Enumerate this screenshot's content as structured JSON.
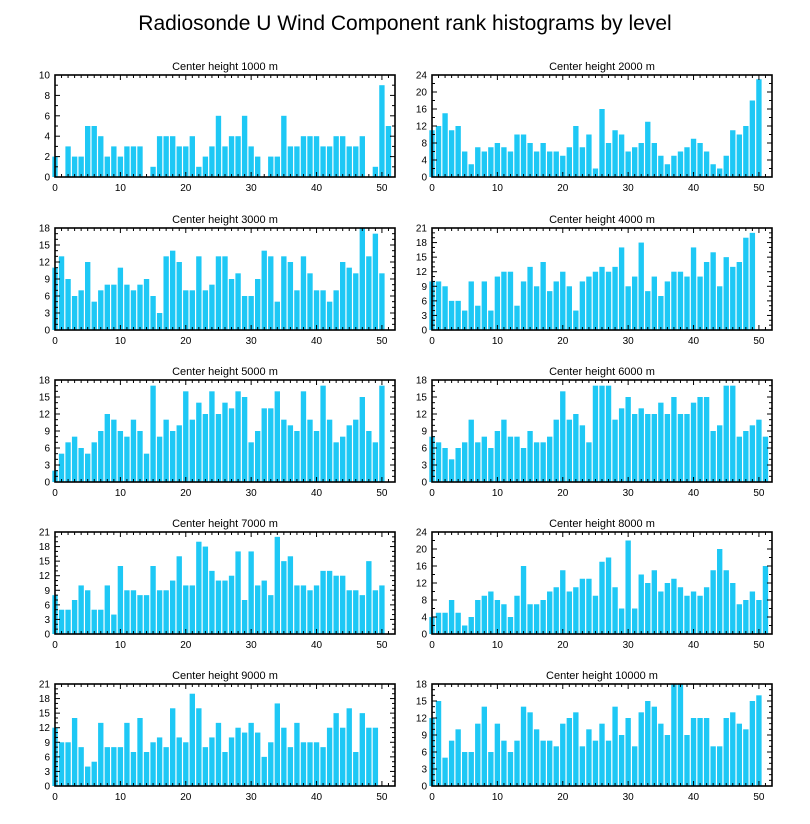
{
  "figure": {
    "title": "Radiosonde U Wind Component rank histograms by level",
    "bar_color": "#1EC8F5",
    "axis_color": "#000000"
  },
  "chart_data": [
    {
      "type": "bar",
      "title": "Center height 1000 m",
      "xlabel": "",
      "ylabel": "",
      "xlim": [
        0,
        52
      ],
      "xticks": [
        0,
        10,
        20,
        30,
        40,
        50
      ],
      "ylim": [
        0,
        10
      ],
      "yticks": [
        0,
        2,
        4,
        6,
        8,
        10
      ],
      "values": [
        2,
        0,
        3,
        2,
        2,
        5,
        5,
        4,
        2,
        3,
        2,
        3,
        3,
        3,
        0,
        1,
        4,
        4,
        4,
        3,
        3,
        4,
        1,
        2,
        3,
        6,
        3,
        4,
        4,
        6,
        3,
        2,
        0,
        2,
        2,
        6,
        3,
        3,
        4,
        4,
        4,
        3,
        3,
        4,
        4,
        3,
        3,
        4,
        0,
        1,
        9,
        5
      ]
    },
    {
      "type": "bar",
      "title": "Center height 2000 m",
      "xlabel": "",
      "ylabel": "",
      "xlim": [
        0,
        52
      ],
      "xticks": [
        0,
        10,
        20,
        30,
        40,
        50
      ],
      "ylim": [
        0,
        24
      ],
      "yticks": [
        0,
        4,
        8,
        12,
        16,
        20,
        24
      ],
      "values": [
        11,
        12,
        15,
        11,
        12,
        6,
        3,
        7,
        6,
        7,
        8,
        7,
        6,
        10,
        10,
        8,
        6,
        8,
        6,
        6,
        5,
        7,
        12,
        7,
        10,
        2,
        16,
        8,
        11,
        10,
        6,
        7,
        8,
        13,
        8,
        5,
        3,
        5,
        6,
        7,
        9,
        8,
        6,
        3,
        2,
        5,
        11,
        10,
        12,
        18,
        23,
        0
      ]
    },
    {
      "type": "bar",
      "title": "Center height 3000 m",
      "xlabel": "",
      "ylabel": "",
      "xlim": [
        0,
        52
      ],
      "xticks": [
        0,
        10,
        20,
        30,
        40,
        50
      ],
      "ylim": [
        0,
        18
      ],
      "yticks": [
        0,
        3,
        6,
        9,
        12,
        15,
        18
      ],
      "values": [
        11,
        13,
        9,
        6,
        7,
        12,
        5,
        7,
        8,
        8,
        11,
        8,
        7,
        8,
        9,
        6,
        3,
        13,
        14,
        12,
        7,
        7,
        13,
        7,
        8,
        13,
        13,
        9,
        10,
        6,
        6,
        9,
        14,
        13,
        5,
        13,
        12,
        7,
        13,
        10,
        7,
        7,
        5,
        7,
        12,
        11,
        10,
        18,
        13,
        17,
        10,
        0
      ]
    },
    {
      "type": "bar",
      "title": "Center height 4000 m",
      "xlabel": "",
      "ylabel": "",
      "xlim": [
        0,
        52
      ],
      "xticks": [
        0,
        10,
        20,
        30,
        40,
        50
      ],
      "ylim": [
        0,
        21
      ],
      "yticks": [
        0,
        3,
        6,
        9,
        12,
        15,
        18,
        21
      ],
      "values": [
        10,
        10,
        9,
        6,
        6,
        4,
        10,
        5,
        10,
        4,
        11,
        12,
        12,
        5,
        10,
        13,
        9,
        14,
        8,
        10,
        12,
        9,
        4,
        10,
        11,
        12,
        13,
        12,
        13,
        17,
        9,
        11,
        18,
        8,
        11,
        7,
        10,
        12,
        12,
        11,
        17,
        11,
        14,
        16,
        9,
        15,
        13,
        14,
        19,
        20,
        0,
        0
      ]
    },
    {
      "type": "bar",
      "title": "Center height 5000 m",
      "xlabel": "",
      "ylabel": "",
      "xlim": [
        0,
        52
      ],
      "xticks": [
        0,
        10,
        20,
        30,
        40,
        50
      ],
      "ylim": [
        0,
        18
      ],
      "yticks": [
        0,
        3,
        6,
        9,
        12,
        15,
        18
      ],
      "values": [
        2,
        5,
        7,
        8,
        6,
        5,
        7,
        9,
        12,
        11,
        9,
        8,
        11,
        9,
        5,
        17,
        8,
        11,
        9,
        10,
        16,
        11,
        14,
        12,
        16,
        12,
        14,
        13,
        16,
        15,
        7,
        9,
        13,
        13,
        16,
        11,
        10,
        9,
        16,
        11,
        9,
        17,
        11,
        7,
        8,
        10,
        11,
        15,
        9,
        7,
        17,
        0
      ]
    },
    {
      "type": "bar",
      "title": "Center height 6000 m",
      "xlabel": "",
      "ylabel": "",
      "xlim": [
        0,
        52
      ],
      "xticks": [
        0,
        10,
        20,
        30,
        40,
        50
      ],
      "ylim": [
        0,
        18
      ],
      "yticks": [
        0,
        3,
        6,
        9,
        12,
        15,
        18
      ],
      "values": [
        8,
        7,
        6,
        4,
        6,
        7,
        11,
        7,
        8,
        6,
        9,
        11,
        8,
        8,
        6,
        9,
        7,
        7,
        8,
        11,
        16,
        11,
        12,
        10,
        7,
        17,
        17,
        17,
        11,
        13,
        15,
        12,
        13,
        12,
        12,
        14,
        12,
        15,
        12,
        12,
        14,
        15,
        15,
        9,
        10,
        17,
        17,
        8,
        9,
        10,
        11,
        8
      ]
    },
    {
      "type": "bar",
      "title": "Center height 7000 m",
      "xlabel": "",
      "ylabel": "",
      "xlim": [
        0,
        52
      ],
      "xticks": [
        0,
        10,
        20,
        30,
        40,
        50
      ],
      "ylim": [
        0,
        21
      ],
      "yticks": [
        0,
        3,
        6,
        9,
        12,
        15,
        18,
        21
      ],
      "values": [
        8,
        5,
        5,
        7,
        10,
        9,
        5,
        5,
        10,
        4,
        14,
        9,
        9,
        8,
        8,
        14,
        9,
        9,
        11,
        16,
        10,
        10,
        19,
        18,
        13,
        11,
        11,
        12,
        17,
        7,
        17,
        10,
        11,
        8,
        20,
        15,
        16,
        10,
        10,
        9,
        10,
        13,
        13,
        12,
        12,
        9,
        9,
        8,
        15,
        9,
        10,
        0
      ]
    },
    {
      "type": "bar",
      "title": "Center height 8000 m",
      "xlabel": "",
      "ylabel": "",
      "xlim": [
        0,
        52
      ],
      "xticks": [
        0,
        10,
        20,
        30,
        40,
        50
      ],
      "ylim": [
        0,
        24
      ],
      "yticks": [
        0,
        4,
        8,
        12,
        16,
        20,
        24
      ],
      "values": [
        4,
        5,
        5,
        8,
        5,
        2,
        4,
        8,
        9,
        10,
        8,
        7,
        4,
        9,
        16,
        7,
        7,
        8,
        10,
        11,
        15,
        10,
        11,
        13,
        13,
        9,
        17,
        18,
        11,
        6,
        22,
        6,
        14,
        12,
        15,
        10,
        12,
        13,
        11,
        9,
        10,
        9,
        11,
        15,
        20,
        15,
        12,
        7,
        8,
        10,
        8,
        16
      ]
    },
    {
      "type": "bar",
      "title": "Center height 9000 m",
      "xlabel": "",
      "ylabel": "",
      "xlim": [
        0,
        52
      ],
      "xticks": [
        0,
        10,
        20,
        30,
        40,
        50
      ],
      "ylim": [
        0,
        21
      ],
      "yticks": [
        0,
        3,
        6,
        9,
        12,
        15,
        18,
        21
      ],
      "values": [
        12,
        9,
        9,
        14,
        8,
        4,
        5,
        13,
        8,
        8,
        8,
        13,
        7,
        14,
        7,
        9,
        10,
        8,
        16,
        10,
        9,
        19,
        16,
        8,
        10,
        13,
        7,
        10,
        12,
        11,
        13,
        11,
        6,
        9,
        17,
        12,
        8,
        13,
        9,
        9,
        9,
        8,
        12,
        15,
        12,
        16,
        7,
        15,
        12,
        12,
        0,
        0
      ]
    },
    {
      "type": "bar",
      "title": "Center height 10000 m",
      "xlabel": "",
      "ylabel": "",
      "xlim": [
        0,
        52
      ],
      "xticks": [
        0,
        10,
        20,
        30,
        40,
        50
      ],
      "ylim": [
        0,
        18
      ],
      "yticks": [
        0,
        3,
        6,
        9,
        12,
        15,
        18
      ],
      "values": [
        12,
        15,
        5,
        8,
        10,
        6,
        6,
        11,
        14,
        6,
        11,
        8,
        6,
        8,
        14,
        13,
        10,
        8,
        8,
        7,
        11,
        12,
        13,
        7,
        10,
        8,
        11,
        8,
        14,
        9,
        12,
        7,
        13,
        15,
        14,
        11,
        9,
        18,
        18,
        9,
        12,
        12,
        12,
        7,
        7,
        12,
        13,
        11,
        10,
        15,
        16,
        0
      ]
    }
  ]
}
